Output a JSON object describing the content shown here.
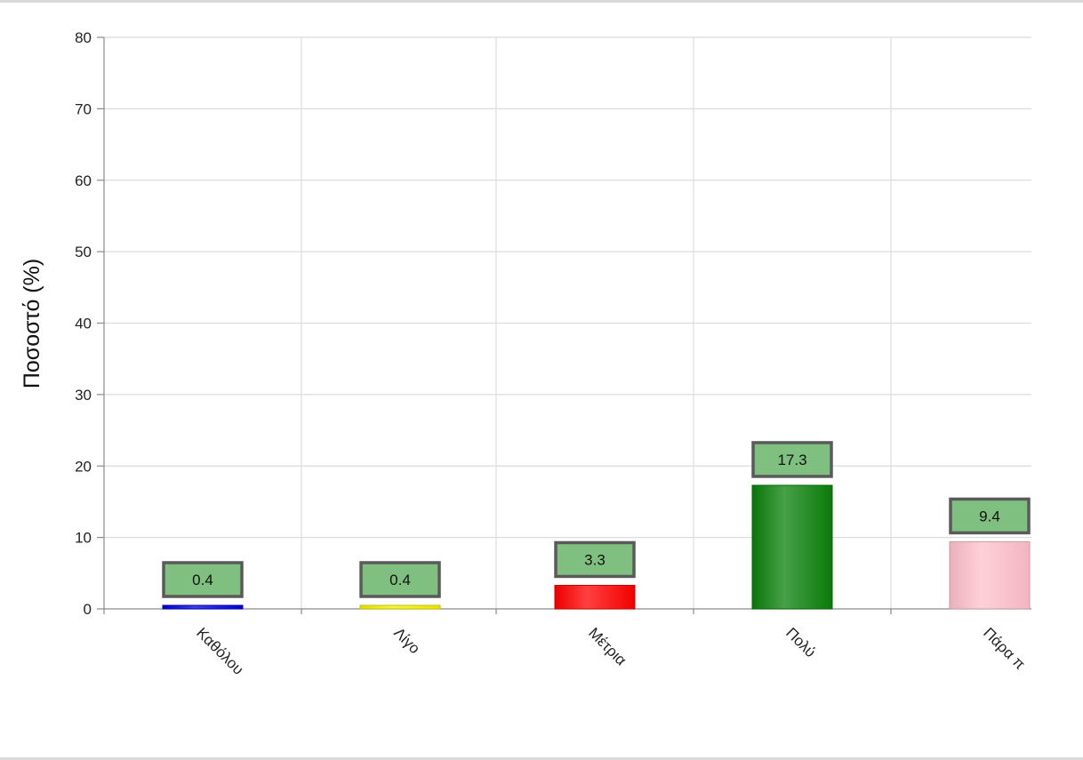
{
  "chart_data": {
    "type": "bar",
    "title": "",
    "xlabel": "",
    "ylabel": "Ποσοστό (%)",
    "ylim": [
      0,
      80
    ],
    "yticks": [
      0,
      10,
      20,
      30,
      40,
      50,
      60,
      70,
      80
    ],
    "grid": true,
    "categories": [
      "Καθόλου",
      "Λίγο",
      "Μέτρια",
      "Πολύ",
      "Πάρα π"
    ],
    "values": [
      0.4,
      0.4,
      3.3,
      17.3,
      9.4
    ],
    "data_labels": [
      "0.4",
      "0.4",
      "3.3",
      "17.3",
      "9.4"
    ],
    "colors": [
      "#0000dd",
      "#f2f200",
      "#ff0000",
      "#0a800a",
      "#ffc0cb"
    ],
    "data_label_style": {
      "fill": "#7fbf7f",
      "border": "#5a5a5a"
    }
  }
}
